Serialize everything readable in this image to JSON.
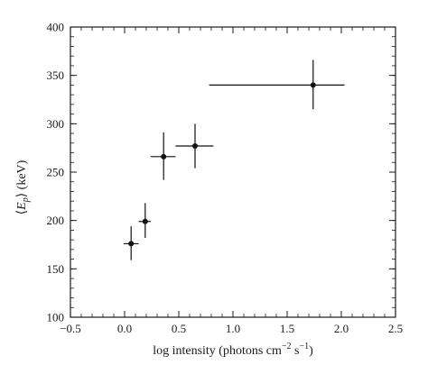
{
  "chart_data": {
    "type": "scatter",
    "title": "",
    "xlabel": "log intensity (photons cm",
    "xlabel_sup1": "−2",
    "xlabel_mid": " s",
    "xlabel_sup2": "−1",
    "xlabel_end": ")",
    "ylabel_pre": "⟨",
    "ylabel_var": "E",
    "ylabel_sub": "p",
    "ylabel_post": "⟩  (keV)",
    "xlim": [
      -0.5,
      2.5
    ],
    "ylim": [
      100,
      400
    ],
    "x_ticks": [
      -0.5,
      0.0,
      0.5,
      1.0,
      1.5,
      2.0,
      2.5
    ],
    "x_tick_labels": [
      "−0.5",
      "0.0",
      "0.5",
      "1.0",
      "1.5",
      "2.0",
      "2.5"
    ],
    "y_ticks": [
      100,
      150,
      200,
      250,
      300,
      350,
      400
    ],
    "y_tick_labels": [
      "100",
      "150",
      "200",
      "250",
      "300",
      "350",
      "400"
    ],
    "grid": false,
    "points": [
      {
        "x": 0.06,
        "y": 176,
        "x_lo": -0.01,
        "x_hi": 0.13,
        "y_lo": 159,
        "y_hi": 194
      },
      {
        "x": 0.19,
        "y": 199,
        "x_lo": 0.13,
        "x_hi": 0.24,
        "y_lo": 182,
        "y_hi": 218
      },
      {
        "x": 0.36,
        "y": 266,
        "x_lo": 0.24,
        "x_hi": 0.47,
        "y_lo": 242,
        "y_hi": 291
      },
      {
        "x": 0.65,
        "y": 277,
        "x_lo": 0.47,
        "x_hi": 0.82,
        "y_lo": 254,
        "y_hi": 300
      },
      {
        "x": 1.74,
        "y": 340,
        "x_lo": 0.78,
        "x_hi": 2.03,
        "y_lo": 315,
        "y_hi": 366
      }
    ]
  }
}
